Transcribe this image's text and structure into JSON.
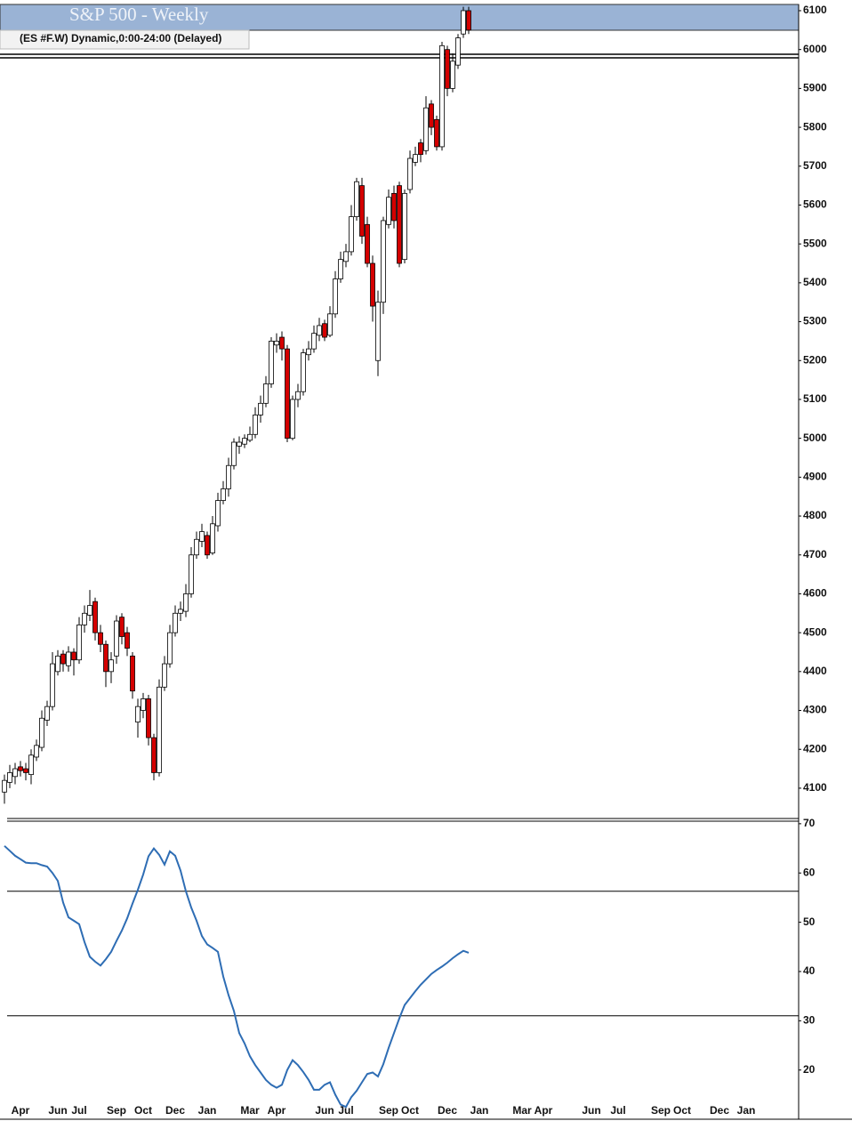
{
  "chart_data": [
    {
      "type": "candlestick",
      "title": "S&P 500 - Weekly",
      "subtitle": "(ES #F.W) Dynamic,0:00-24:00 (Delayed)",
      "categories": [
        null,
        null,
        null,
        "Apr",
        null,
        null,
        null,
        null,
        null,
        null,
        "Jun",
        null,
        null,
        null,
        "Jul",
        null,
        null,
        null,
        null,
        null,
        null,
        "Sep",
        null,
        null,
        null,
        null,
        "Oct",
        null,
        null,
        null,
        null,
        null,
        "Dec",
        null,
        null,
        null,
        null,
        null,
        "Jan",
        null,
        null,
        null,
        null,
        null,
        null,
        null,
        "Mar",
        null,
        null,
        null,
        null,
        "Apr",
        null,
        null,
        null,
        null,
        null,
        null,
        null,
        null,
        "Jun",
        null,
        null,
        null,
        "Jul",
        null,
        null,
        null,
        null,
        null,
        null,
        null,
        "Sep",
        null,
        null,
        null,
        "Oct",
        null,
        null,
        null,
        null,
        null,
        null,
        "Dec",
        null,
        null,
        null,
        null,
        null,
        "Jan",
        null,
        null,
        null,
        null,
        null,
        null,
        null,
        "Mar",
        null,
        null,
        null,
        "Apr",
        null,
        null,
        null,
        null,
        null,
        null,
        null,
        null,
        "Jun",
        null,
        null,
        null,
        null,
        "Jul",
        null,
        null,
        null,
        null,
        null,
        null,
        null,
        "Sep",
        null,
        null,
        null,
        "Oct",
        null,
        null,
        null,
        null,
        null,
        null,
        "Dec",
        null,
        null,
        null,
        null,
        "Jan",
        null,
        null,
        null,
        null,
        null,
        null,
        null,
        null,
        null
      ],
      "open": [
        4090,
        4115,
        4130,
        4155,
        4150,
        4135,
        4180,
        4205,
        4275,
        4310,
        4400,
        4445,
        4415,
        4450,
        4430,
        4520,
        4545,
        4580,
        4500,
        4470,
        4400,
        4440,
        4540,
        4500,
        4440,
        4270,
        4300,
        4330,
        4230,
        4140,
        4360,
        4420,
        4500,
        4550,
        4555,
        4600,
        4700,
        4735,
        4750,
        4705,
        4775,
        4840,
        4870,
        4930,
        4980,
        4985,
        4995,
        5010,
        5060,
        5090,
        5140,
        5240,
        5260,
        5230,
        5000,
        5100,
        5120,
        5215,
        5230,
        5265,
        5295,
        5265,
        5320,
        5410,
        5455,
        5480,
        5570,
        5650,
        5550,
        5450,
        5200,
        5350,
        5550,
        5630,
        5650,
        5460,
        5640,
        5710,
        5760,
        5740,
        5860,
        5820,
        5750,
        6000,
        5900,
        5960,
        6040,
        6100,
        null,
        null,
        null,
        null,
        null,
        null,
        null,
        null,
        null,
        null,
        null,
        null,
        null,
        null,
        null,
        null,
        null,
        null,
        null,
        null,
        null,
        null,
        null,
        null,
        null,
        null,
        null,
        null,
        null,
        null,
        null,
        null,
        null,
        null,
        null,
        null,
        null,
        null,
        null,
        null,
        null,
        null,
        null,
        null,
        null,
        null,
        null,
        null,
        null,
        null,
        null,
        null,
        null,
        null,
        null,
        null,
        null,
        null,
        null,
        null,
        null
      ],
      "high": [
        4135,
        4160,
        4165,
        4170,
        4165,
        4200,
        4225,
        4300,
        4325,
        4450,
        4455,
        4455,
        4465,
        4460,
        4540,
        4570,
        4610,
        4590,
        4520,
        4480,
        4450,
        4545,
        4550,
        4515,
        4450,
        4330,
        4345,
        4340,
        4240,
        4380,
        4440,
        4520,
        4570,
        4580,
        4625,
        4720,
        4760,
        4780,
        4760,
        4800,
        4860,
        4890,
        4950,
        5000,
        5005,
        5010,
        5030,
        5080,
        5110,
        5160,
        5260,
        5270,
        5275,
        5240,
        5110,
        5140,
        5230,
        5250,
        5290,
        5310,
        5305,
        5340,
        5430,
        5480,
        5500,
        5600,
        5670,
        5670,
        5570,
        5470,
        5380,
        5570,
        5640,
        5650,
        5660,
        5640,
        5740,
        5750,
        5770,
        5880,
        5870,
        5830,
        6020,
        6010,
        5990,
        6040,
        6110,
        6110,
        null,
        null,
        null,
        null,
        null,
        null,
        null,
        null,
        null,
        null,
        null,
        null,
        null,
        null,
        null,
        null,
        null,
        null,
        null,
        null,
        null,
        null,
        null,
        null,
        null,
        null,
        null,
        null,
        null,
        null,
        null,
        null,
        null,
        null,
        null,
        null,
        null,
        null,
        null,
        null,
        null,
        null,
        null,
        null,
        null,
        null,
        null,
        null,
        null,
        null,
        null,
        null,
        null,
        null,
        null,
        null,
        null,
        null,
        null,
        null,
        null
      ],
      "low": [
        4060,
        4100,
        4110,
        4130,
        4120,
        4110,
        4170,
        4195,
        4260,
        4300,
        4390,
        4400,
        4400,
        4390,
        4420,
        4500,
        4530,
        4480,
        4450,
        4360,
        4370,
        4420,
        4470,
        4440,
        4330,
        4230,
        4280,
        4210,
        4120,
        4130,
        4350,
        4410,
        4490,
        4530,
        4540,
        4590,
        4690,
        4720,
        4690,
        4700,
        4760,
        4830,
        4850,
        4920,
        4960,
        4975,
        4990,
        5000,
        5040,
        5080,
        5130,
        5220,
        5200,
        4990,
        4995,
        5080,
        5110,
        5200,
        5220,
        5250,
        5250,
        5260,
        5310,
        5400,
        5440,
        5470,
        5560,
        5500,
        5440,
        5300,
        5160,
        5320,
        5540,
        5540,
        5440,
        5450,
        5630,
        5700,
        5710,
        5730,
        5780,
        5740,
        5740,
        5880,
        5890,
        5950,
        6030,
        6040,
        null,
        null,
        null,
        null,
        null,
        null,
        null,
        null,
        null,
        null,
        null,
        null,
        null,
        null,
        null,
        null,
        null,
        null,
        null,
        null,
        null,
        null,
        null,
        null,
        null,
        null,
        null,
        null,
        null,
        null,
        null,
        null,
        null,
        null,
        null,
        null,
        null,
        null,
        null,
        null,
        null,
        null,
        null,
        null,
        null,
        null,
        null,
        null,
        null,
        null,
        null,
        null,
        null,
        null,
        null,
        null,
        null,
        null,
        null,
        null,
        null
      ],
      "close": [
        4120,
        4140,
        4150,
        4145,
        4140,
        4185,
        4210,
        4280,
        4310,
        4420,
        4440,
        4420,
        4450,
        4430,
        4520,
        4550,
        4570,
        4500,
        4470,
        4400,
        4430,
        4530,
        4490,
        4460,
        4350,
        4310,
        4330,
        4230,
        4140,
        4360,
        4420,
        4500,
        4550,
        4560,
        4600,
        4700,
        4740,
        4760,
        4700,
        4780,
        4840,
        4870,
        4930,
        4990,
        4990,
        5000,
        5010,
        5060,
        5090,
        5140,
        5250,
        5250,
        5230,
        5000,
        5100,
        5120,
        5220,
        5230,
        5270,
        5290,
        5260,
        5320,
        5410,
        5460,
        5480,
        5570,
        5660,
        5520,
        5450,
        5340,
        5350,
        5560,
        5620,
        5560,
        5450,
        5630,
        5720,
        5730,
        5730,
        5850,
        5800,
        5750,
        6010,
        5900,
        5970,
        6030,
        6100,
        6050,
        null,
        null,
        null,
        null,
        null,
        null,
        null,
        null,
        null,
        null,
        null,
        null,
        null,
        null,
        null,
        null,
        null,
        null,
        null,
        null,
        null,
        null,
        null,
        null,
        null,
        null,
        null,
        null,
        null,
        null,
        null,
        null,
        null,
        null,
        null,
        null,
        null,
        null,
        null,
        null,
        null,
        null,
        null,
        null,
        null,
        null,
        null,
        null,
        null,
        null,
        null,
        null,
        null,
        null,
        null,
        null,
        null,
        null,
        null,
        null,
        null
      ],
      "up_color": "#ffffff",
      "down_color": "#d40000",
      "ylim": [
        4022,
        6116
      ],
      "yticks": [
        4100,
        4200,
        4300,
        4400,
        4500,
        4600,
        4700,
        4800,
        4900,
        5000,
        5100,
        5200,
        5300,
        5400,
        5500,
        5600,
        5700,
        5800,
        5900,
        6000,
        6100
      ],
      "grid": false
    },
    {
      "type": "line",
      "color": "#2e6db4",
      "values": [
        65.5,
        64.5,
        63.5,
        62.8,
        62.1,
        62,
        62,
        61.6,
        61.3,
        60,
        58.4,
        54,
        51,
        50.3,
        49.6,
        46,
        43,
        42,
        41.2,
        42.5,
        44,
        46.2,
        48.3,
        50.8,
        53.8,
        56.6,
        59.7,
        63.4,
        65,
        63.7,
        61.7,
        64.4,
        63.5,
        60.5,
        56.3,
        53,
        50.3,
        47.2,
        45.5,
        44.8,
        44,
        39,
        35.2,
        32,
        27.5,
        25.4,
        22.8,
        21,
        19.5,
        18,
        17,
        16.4,
        17,
        20,
        22,
        21,
        19.6,
        18,
        16,
        16,
        17,
        17.5,
        15,
        13,
        12.5,
        14.5,
        15.8,
        17.5,
        19.2,
        19.5,
        18.7,
        21.2,
        24.5,
        27.5,
        30.5,
        33.2,
        34.6,
        36,
        37.3,
        38.4,
        39.5,
        40.3,
        41,
        41.8,
        42.7,
        43.5,
        44.2,
        43.8,
        null,
        null,
        null,
        null,
        null,
        null,
        null,
        null,
        null,
        null,
        null,
        null,
        null,
        null,
        null,
        null,
        null,
        null,
        null,
        null,
        null,
        null,
        null,
        null,
        null,
        null,
        null,
        null,
        null,
        null,
        null,
        null,
        null,
        null,
        null,
        null,
        null,
        null,
        null,
        null,
        null,
        null,
        null,
        null,
        null,
        null,
        null,
        null,
        null,
        null,
        null,
        null,
        null,
        null,
        null,
        null,
        null,
        null,
        null,
        null,
        null
      ],
      "levels": [
        56.3,
        31
      ],
      "ylim": [
        12,
        70.7
      ],
      "yticks": [
        20,
        30,
        40,
        50,
        60,
        70
      ],
      "grid": false
    }
  ]
}
